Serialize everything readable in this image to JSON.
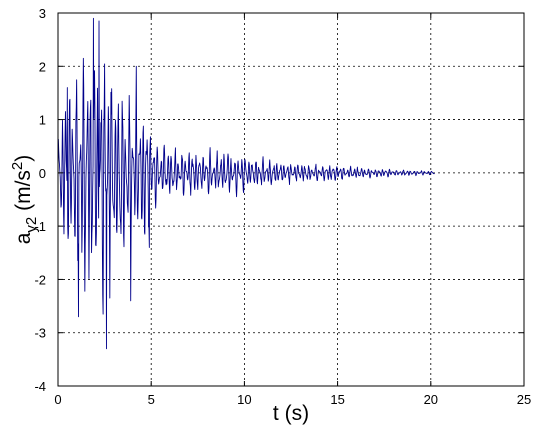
{
  "chart_data": {
    "type": "line",
    "xlabel": "t (s)",
    "ylabel": {
      "base": "a",
      "subscript": "y2",
      "unit_open": " (m/s",
      "superscript": "2",
      "unit_close": ")"
    },
    "xlim": [
      0,
      25
    ],
    "ylim": [
      -4,
      3
    ],
    "xticks": [
      0,
      5,
      10,
      15,
      20,
      25
    ],
    "yticks": [
      -4,
      -3,
      -2,
      -1,
      0,
      1,
      2,
      3
    ],
    "grid": true,
    "line_color": "#00008B",
    "signal": {
      "description_units": "acceleration response time history",
      "t_start": 0,
      "t_end": 20.2,
      "envelope": [
        [
          0.0,
          0.8
        ],
        [
          0.3,
          1.6
        ],
        [
          0.8,
          2.3
        ],
        [
          1.3,
          2.5
        ],
        [
          1.7,
          2.9
        ],
        [
          2.2,
          2.7
        ],
        [
          2.6,
          2.6
        ],
        [
          3.0,
          2.2
        ],
        [
          3.5,
          1.9
        ],
        [
          4.0,
          1.7
        ],
        [
          4.7,
          1.6
        ],
        [
          5.0,
          1.2
        ],
        [
          5.3,
          0.65
        ],
        [
          6.0,
          0.55
        ],
        [
          7.0,
          0.5
        ],
        [
          8.0,
          0.48
        ],
        [
          9.0,
          0.45
        ],
        [
          10.0,
          0.42
        ],
        [
          11.0,
          0.3
        ],
        [
          12.0,
          0.25
        ],
        [
          13.0,
          0.2
        ],
        [
          14.0,
          0.18
        ],
        [
          15.0,
          0.17
        ],
        [
          16.0,
          0.14
        ],
        [
          17.0,
          0.1
        ],
        [
          18.0,
          0.08
        ],
        [
          19.0,
          0.06
        ],
        [
          20.2,
          0.04
        ]
      ],
      "peaks": [
        {
          "t": 1.9,
          "a": 2.9
        },
        {
          "t": 2.2,
          "a": 2.85
        },
        {
          "t": 2.6,
          "a": -3.3
        },
        {
          "t": 1.1,
          "a": -2.7
        },
        {
          "t": 3.9,
          "a": -2.4
        },
        {
          "t": 4.2,
          "a": 2.0
        },
        {
          "t": 4.9,
          "a": -1.4
        },
        {
          "t": 0.5,
          "a": 1.6
        }
      ]
    }
  }
}
